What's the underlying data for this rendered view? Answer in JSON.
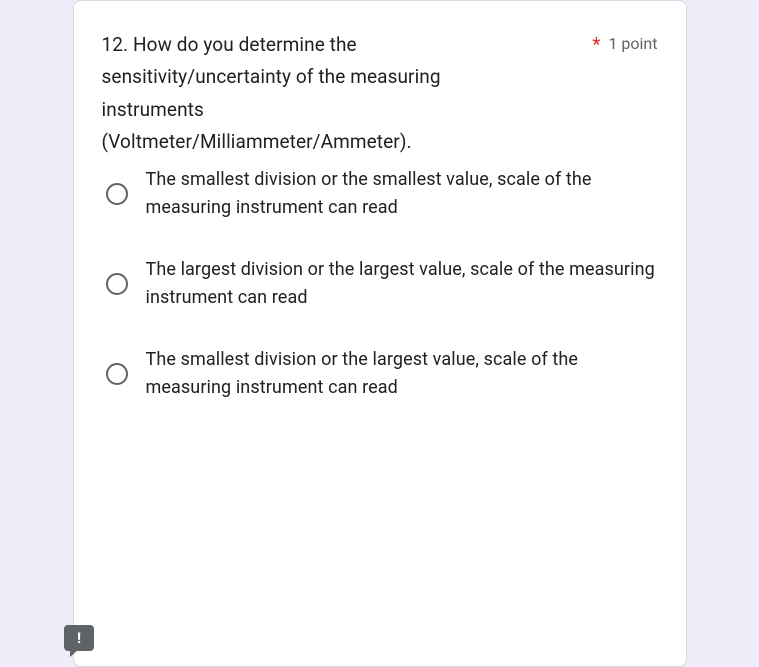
{
  "card": {
    "question_text": "12. How do you determine the sensitivity/uncertainty of the measuring instruments (Voltmeter/Milliammeter/Ammeter).",
    "required_indicator": "*",
    "points_label": "1 point",
    "options": [
      {
        "label": "The smallest division or the smallest value, scale of the measuring instrument can read"
      },
      {
        "label": "The largest division or the largest value, scale of the measuring instrument can read"
      },
      {
        "label": "The smallest division or the largest value, scale of the measuring instrument can read"
      }
    ]
  },
  "feedback": {
    "icon_text": "!"
  },
  "colors": {
    "page_bg": "#f0ebf8",
    "card_bg": "#ffffff",
    "text_primary": "#202124",
    "text_secondary": "#5f6368",
    "required": "#d93025",
    "radio_border": "#5f6368"
  }
}
